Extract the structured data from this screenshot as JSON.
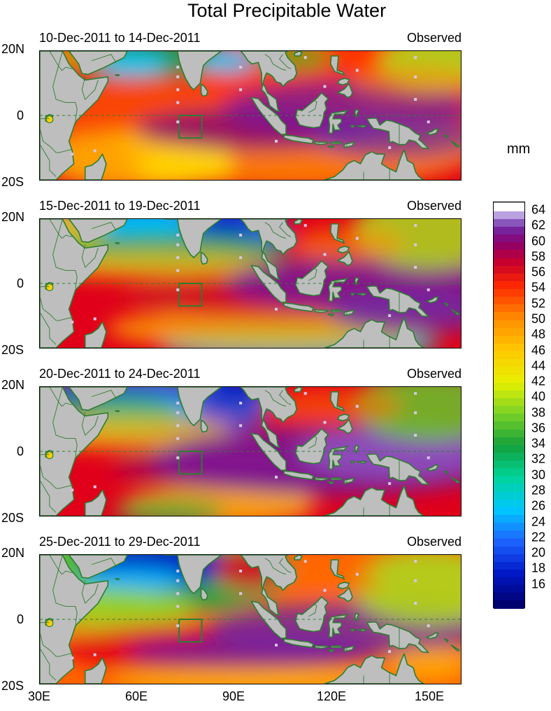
{
  "title": "Total Precipitable Water",
  "unit_label": "mm",
  "panels": [
    {
      "period": "10-Dec-2011 to 14-Dec-2011",
      "status": "Observed"
    },
    {
      "period": "15-Dec-2011 to 19-Dec-2011",
      "status": "Observed"
    },
    {
      "period": "20-Dec-2011 to 24-Dec-2011",
      "status": "Observed"
    },
    {
      "period": "25-Dec-2011 to 29-Dec-2011",
      "status": "Observed"
    }
  ],
  "lat_labels": {
    "north": "20N",
    "equator": "0",
    "south": "20S"
  },
  "lon_labels": [
    "30E",
    "60E",
    "90E",
    "120E",
    "150E"
  ],
  "colorbar": {
    "tick_labels": [
      "16",
      "18",
      "20",
      "22",
      "24",
      "26",
      "28",
      "30",
      "32",
      "34",
      "36",
      "38",
      "40",
      "42",
      "44",
      "46",
      "48",
      "50",
      "52",
      "54",
      "56",
      "58",
      "60",
      "62",
      "64"
    ],
    "color_count": 52
  },
  "colors": {
    "land": "#bebebe",
    "coast": "#2e7d32",
    "box": "#2e7d32"
  }
}
